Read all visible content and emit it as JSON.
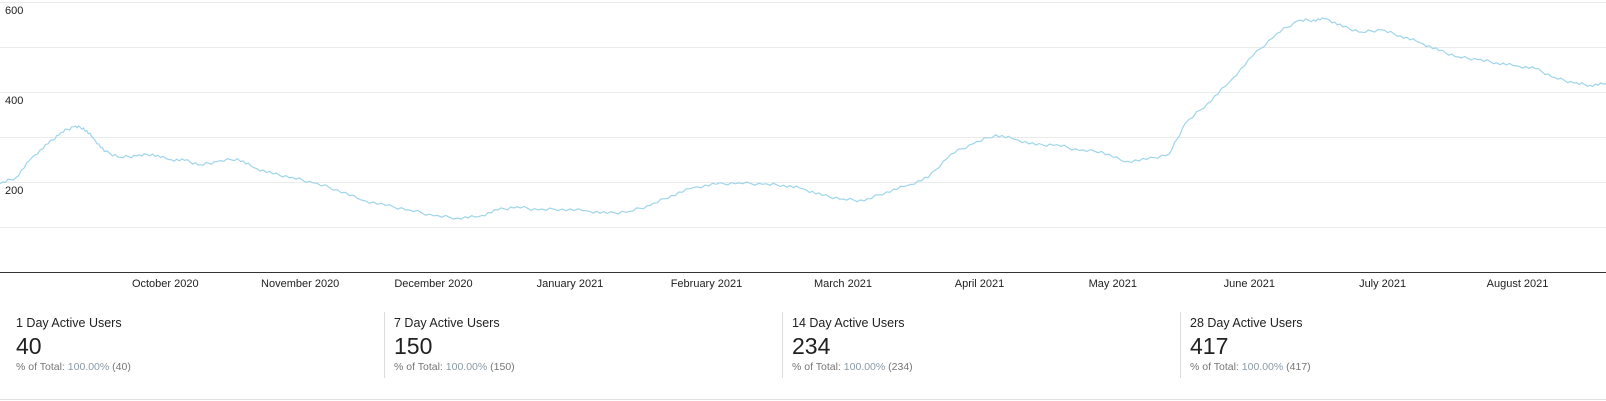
{
  "chart_data": {
    "type": "line",
    "title": "",
    "xlabel": "",
    "ylabel": "",
    "ylim": [
      0,
      600
    ],
    "y_ticks": [
      "600",
      "400",
      "200"
    ],
    "grid": true,
    "x_month_labels": [
      "October 2020",
      "November 2020",
      "December 2020",
      "January 2021",
      "February 2021",
      "March 2021",
      "April 2021",
      "May 2021",
      "June 2021",
      "July 2021",
      "August 2021"
    ],
    "x_month_positions": [
      0.078,
      0.162,
      0.245,
      0.33,
      0.415,
      0.5,
      0.585,
      0.668,
      0.753,
      0.836,
      0.92
    ],
    "series": [
      {
        "color": "#9fd5ea",
        "points": [
          [
            0.0,
            196
          ],
          [
            0.01,
            210
          ],
          [
            0.02,
            255
          ],
          [
            0.03,
            285
          ],
          [
            0.038,
            310
          ],
          [
            0.046,
            323
          ],
          [
            0.052,
            320
          ],
          [
            0.058,
            298
          ],
          [
            0.065,
            268
          ],
          [
            0.075,
            255
          ],
          [
            0.085,
            258
          ],
          [
            0.095,
            262
          ],
          [
            0.105,
            250
          ],
          [
            0.115,
            248
          ],
          [
            0.125,
            238
          ],
          [
            0.135,
            245
          ],
          [
            0.148,
            252
          ],
          [
            0.158,
            232
          ],
          [
            0.17,
            218
          ],
          [
            0.182,
            210
          ],
          [
            0.195,
            198
          ],
          [
            0.21,
            183
          ],
          [
            0.225,
            160
          ],
          [
            0.24,
            148
          ],
          [
            0.255,
            138
          ],
          [
            0.27,
            125
          ],
          [
            0.285,
            120
          ],
          [
            0.298,
            123
          ],
          [
            0.31,
            138
          ],
          [
            0.322,
            145
          ],
          [
            0.335,
            138
          ],
          [
            0.35,
            140
          ],
          [
            0.365,
            136
          ],
          [
            0.378,
            130
          ],
          [
            0.392,
            135
          ],
          [
            0.405,
            148
          ],
          [
            0.418,
            170
          ],
          [
            0.432,
            188
          ],
          [
            0.446,
            195
          ],
          [
            0.46,
            198
          ],
          [
            0.475,
            195
          ],
          [
            0.488,
            193
          ],
          [
            0.5,
            185
          ],
          [
            0.512,
            170
          ],
          [
            0.525,
            162
          ],
          [
            0.538,
            158
          ],
          [
            0.552,
            178
          ],
          [
            0.565,
            192
          ],
          [
            0.578,
            210
          ],
          [
            0.592,
            262
          ],
          [
            0.606,
            285
          ],
          [
            0.62,
            305
          ],
          [
            0.632,
            295
          ],
          [
            0.645,
            282
          ],
          [
            0.658,
            283
          ],
          [
            0.672,
            270
          ],
          [
            0.686,
            268
          ],
          [
            0.7,
            245
          ],
          [
            0.714,
            250
          ],
          [
            0.728,
            262
          ],
          [
            0.738,
            330
          ],
          [
            0.752,
            375
          ],
          [
            0.765,
            420
          ],
          [
            0.78,
            480
          ],
          [
            0.795,
            530
          ],
          [
            0.808,
            558
          ],
          [
            0.818,
            560
          ],
          [
            0.826,
            563
          ],
          [
            0.836,
            545
          ],
          [
            0.848,
            533
          ],
          [
            0.86,
            538
          ],
          [
            0.872,
            525
          ],
          [
            0.884,
            510
          ],
          [
            0.896,
            492
          ],
          [
            0.908,
            478
          ],
          [
            0.92,
            472
          ],
          [
            0.932,
            465
          ],
          [
            0.944,
            458
          ],
          [
            0.956,
            452
          ],
          [
            0.968,
            432
          ],
          [
            0.98,
            420
          ],
          [
            0.99,
            415
          ],
          [
            1.0,
            418
          ]
        ]
      }
    ]
  },
  "metrics": [
    {
      "label": "1 Day Active Users",
      "value": "40",
      "total_prefix": "% of Total:",
      "total_pct": "100.00%",
      "total_abs": "(40)"
    },
    {
      "label": "7 Day Active Users",
      "value": "150",
      "total_prefix": "% of Total:",
      "total_pct": "100.00%",
      "total_abs": "(150)"
    },
    {
      "label": "14 Day Active Users",
      "value": "234",
      "total_prefix": "% of Total:",
      "total_pct": "100.00%",
      "total_abs": "(234)"
    },
    {
      "label": "28 Day Active Users",
      "value": "417",
      "total_prefix": "% of Total:",
      "total_pct": "100.00%",
      "total_abs": "(417)"
    }
  ]
}
